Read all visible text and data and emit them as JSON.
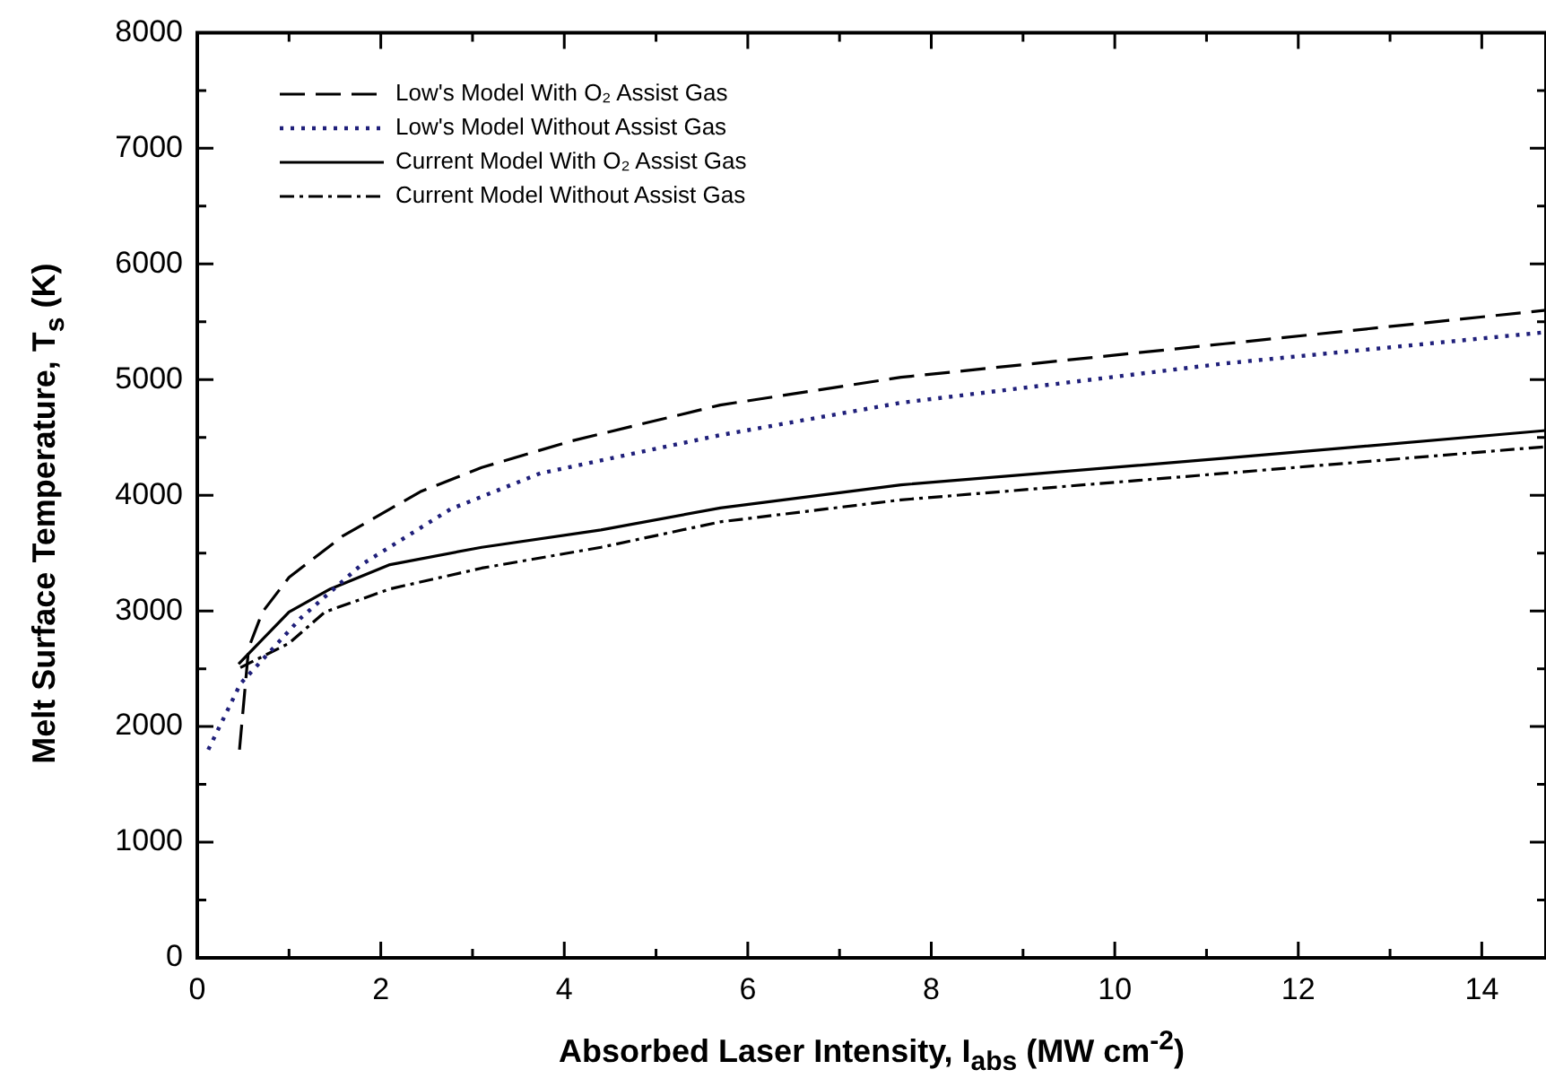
{
  "chart_data": {
    "type": "line",
    "xlabel": "Absorbed Laser Intensity, I$_{abs}$ (MW cm$^{-2}$)",
    "ylabel": "Melt Surface Temperature, T$_{s}$ (K)",
    "xlim": [
      0,
      14.7
    ],
    "ylim": [
      0,
      8000
    ],
    "xticks": [
      0,
      {
        "value": 1,
        "label": null
      },
      2,
      {
        "value": 3,
        "label": null
      },
      4,
      {
        "value": 5,
        "label": null
      },
      6,
      {
        "value": 7,
        "label": null
      },
      8,
      {
        "value": 9,
        "label": null
      },
      10,
      {
        "value": 11,
        "label": null
      },
      12,
      {
        "value": 13,
        "label": null
      },
      14
    ],
    "yticks": [
      0,
      {
        "value": 500,
        "label": null
      },
      1000,
      {
        "value": 1500,
        "label": null
      },
      2000,
      {
        "value": 2500,
        "label": null
      },
      3000,
      {
        "value": 3500,
        "label": null
      },
      4000,
      {
        "value": 4500,
        "label": null
      },
      5000,
      {
        "value": 5500,
        "label": null
      },
      6000,
      {
        "value": 6500,
        "label": null
      },
      7000,
      {
        "value": 7500,
        "label": null
      },
      8000
    ],
    "grid": false,
    "legend": "top left",
    "marker": "none",
    "series": [
      {
        "name": "Low's Model With O₂ Assist Gas",
        "color": "#000000",
        "line_style": "dashed",
        "x": [
          0.46,
          0.56,
          0.71,
          1.0,
          1.59,
          2.43,
          3.1,
          4.08,
          5.7,
          7.67,
          11.2,
          14.7
        ],
        "values": [
          1800,
          2680,
          2990,
          3290,
          3650,
          4030,
          4240,
          4470,
          4780,
          5020,
          5310,
          5600
        ]
      },
      {
        "name": "Low's Model Without Assist Gas",
        "color": "#1f1f7a",
        "line_style": "dotted",
        "x": [
          0.12,
          0.47,
          1.13,
          1.79,
          2.76,
          3.74,
          5.7,
          7.67,
          11.2,
          14.7
        ],
        "values": [
          1800,
          2370,
          2940,
          3400,
          3880,
          4190,
          4520,
          4800,
          5140,
          5410
        ]
      },
      {
        "name": "Current Model With O₂ Assist Gas",
        "color": "#000000",
        "line_style": "solid",
        "x": [
          0.45,
          1.0,
          1.45,
          2.1,
          3.1,
          4.4,
          5.7,
          7.67,
          11.2,
          14.7
        ],
        "values": [
          2540,
          2990,
          3190,
          3400,
          3550,
          3700,
          3890,
          4090,
          4320,
          4560
        ]
      },
      {
        "name": "Current Model Without Assist Gas",
        "color": "#000000",
        "line_style": "dashdot",
        "x": [
          0.47,
          1.0,
          1.39,
          2.1,
          3.1,
          4.4,
          5.7,
          7.67,
          11.2,
          14.7
        ],
        "values": [
          2510,
          2720,
          2990,
          3190,
          3370,
          3550,
          3770,
          3960,
          4190,
          4420
        ]
      }
    ]
  }
}
